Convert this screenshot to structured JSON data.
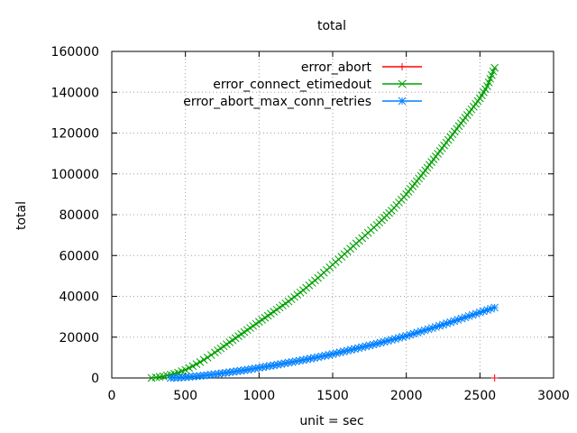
{
  "chart_data": {
    "type": "line",
    "title": "total",
    "xlabel": "unit = sec",
    "ylabel": "total",
    "xlim": [
      0,
      3000
    ],
    "ylim": [
      0,
      160000
    ],
    "xticks": [
      0,
      500,
      1000,
      1500,
      2000,
      2500,
      3000
    ],
    "yticks": [
      0,
      20000,
      40000,
      60000,
      80000,
      100000,
      120000,
      140000,
      160000
    ],
    "grid": true,
    "legend_position": "top-right",
    "series": [
      {
        "name": "error_abort",
        "color": "#ff0000",
        "marker": "plus",
        "x": [
          2600
        ],
        "y": [
          0
        ]
      },
      {
        "name": "error_connect_etimedout",
        "color": "#00a000",
        "marker": "cross",
        "x": [
          270,
          300,
          350,
          400,
          450,
          500,
          550,
          600,
          650,
          700,
          800,
          900,
          1000,
          1100,
          1200,
          1300,
          1400,
          1500,
          1600,
          1700,
          1800,
          1900,
          2000,
          2100,
          2200,
          2300,
          2400,
          2500,
          2550,
          2600
        ],
        "y": [
          0,
          300,
          800,
          1600,
          2600,
          4000,
          5800,
          7800,
          10000,
          12500,
          17500,
          22500,
          27500,
          32500,
          37500,
          43000,
          49000,
          55500,
          62000,
          68500,
          75000,
          82000,
          90000,
          99000,
          108500,
          118000,
          127500,
          137000,
          143000,
          152000
        ]
      },
      {
        "name": "error_abort_max_conn_retries",
        "color": "#0080ff",
        "marker": "star",
        "x": [
          400,
          450,
          500,
          550,
          600,
          650,
          700,
          800,
          900,
          1000,
          1100,
          1200,
          1300,
          1400,
          1500,
          1600,
          1700,
          1800,
          1900,
          2000,
          2100,
          2200,
          2300,
          2400,
          2500,
          2550,
          2600
        ],
        "y": [
          0,
          150,
          400,
          700,
          1000,
          1400,
          1800,
          2800,
          3800,
          5000,
          6200,
          7500,
          8800,
          10200,
          11700,
          13400,
          15100,
          16800,
          18700,
          20600,
          22800,
          25000,
          27300,
          29700,
          32100,
          33300,
          34500
        ]
      }
    ]
  }
}
